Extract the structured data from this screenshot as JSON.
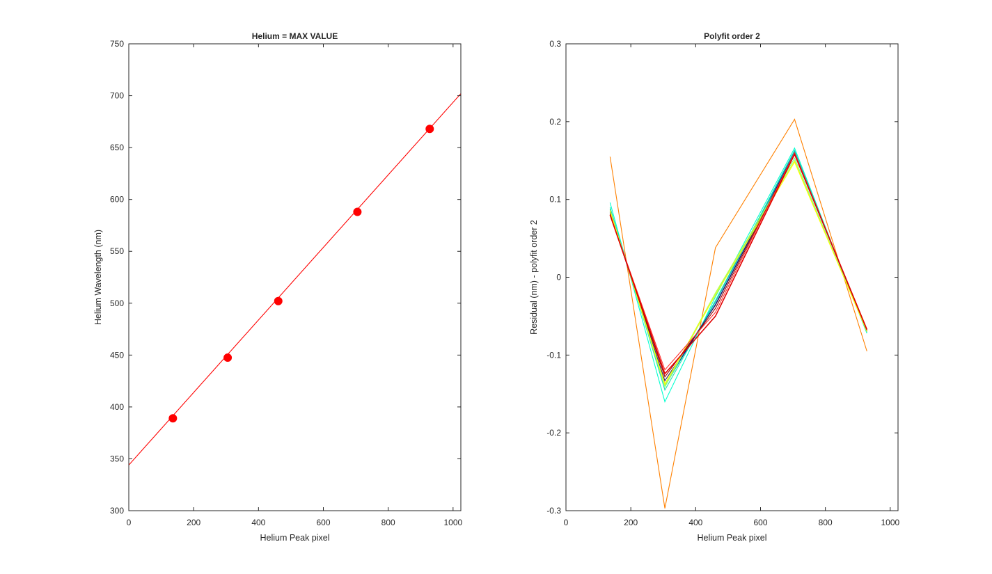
{
  "chart_data": [
    {
      "type": "line",
      "title": "Helium = MAX VALUE",
      "xlabel": "Helium Peak pixel",
      "ylabel": "Helium Wavelength (nm)",
      "xlim": [
        0,
        1024
      ],
      "ylim": [
        300,
        750
      ],
      "xticks": [
        0,
        200,
        400,
        600,
        800,
        1000
      ],
      "yticks": [
        300,
        350,
        400,
        450,
        500,
        550,
        600,
        650,
        700,
        750
      ],
      "grid": false,
      "series": [
        {
          "style": "line",
          "color": "#ff0000",
          "x": [
            0,
            1024
          ],
          "y": [
            344,
            702
          ]
        },
        {
          "style": "markers",
          "color": "#ff0000",
          "x": [
            136,
            305,
            461,
            705,
            928
          ],
          "y": [
            389,
            447.5,
            502,
            588,
            668
          ]
        }
      ]
    },
    {
      "type": "line",
      "title": "Polyfit order 2",
      "xlabel": "Helium Peak pixel",
      "ylabel": "Residual (nm) - polyfit order 2",
      "xlim": [
        0,
        1024
      ],
      "ylim": [
        -0.3,
        0.3
      ],
      "xticks": [
        0,
        200,
        400,
        600,
        800,
        1000
      ],
      "yticks": [
        -0.3,
        -0.2,
        -0.1,
        0,
        0.1,
        0.2,
        0.3
      ],
      "ytick_labels": [
        "-0.3",
        "-0.2",
        "-0.1",
        "0",
        "0.1",
        "0.2",
        "0.3"
      ],
      "grid": false,
      "x": [
        136,
        305,
        461,
        705,
        928
      ],
      "series": [
        {
          "color": "#ff8000",
          "values": [
            0.155,
            -0.297,
            0.038,
            0.203,
            -0.095
          ]
        },
        {
          "color": "#00ffd0",
          "values": [
            0.096,
            -0.16,
            -0.025,
            0.166,
            -0.072
          ]
        },
        {
          "color": "#20e0b0",
          "values": [
            0.09,
            -0.145,
            -0.03,
            0.163,
            -0.071
          ]
        },
        {
          "color": "#00bfbf",
          "values": [
            0.088,
            -0.14,
            -0.032,
            0.162,
            -0.07
          ]
        },
        {
          "color": "#000080",
          "values": [
            0.084,
            -0.137,
            -0.035,
            0.16,
            -0.069
          ]
        },
        {
          "color": "#2a2a60",
          "values": [
            0.083,
            -0.133,
            -0.036,
            0.159,
            -0.069
          ]
        },
        {
          "color": "#80ff80",
          "values": [
            0.087,
            -0.141,
            -0.022,
            0.153,
            -0.07
          ]
        },
        {
          "color": "#c0ff40",
          "values": [
            0.086,
            -0.139,
            -0.02,
            0.15,
            -0.07
          ]
        },
        {
          "color": "#ffff00",
          "values": [
            0.085,
            -0.137,
            -0.023,
            0.148,
            -0.069
          ]
        },
        {
          "color": "#a00000",
          "values": [
            0.081,
            -0.128,
            -0.04,
            0.159,
            -0.068
          ]
        },
        {
          "color": "#ff3030",
          "values": [
            0.08,
            -0.119,
            -0.045,
            0.16,
            -0.067
          ]
        },
        {
          "color": "#e00000",
          "values": [
            0.08,
            -0.124,
            -0.05,
            0.158,
            -0.067
          ],
          "width": 1.6
        }
      ]
    }
  ]
}
